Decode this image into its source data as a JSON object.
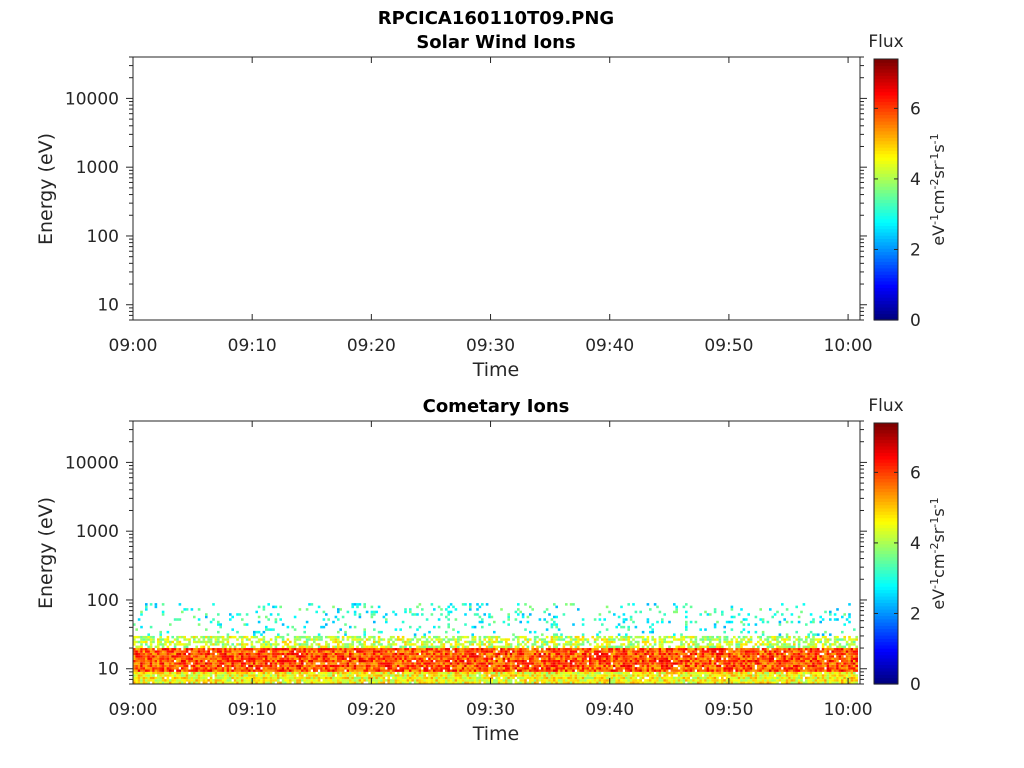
{
  "figure_title": "RPCICA160110T09.PNG",
  "chart_data": [
    {
      "type": "heatmap",
      "title": "Solar Wind Ions",
      "xlabel": "Time",
      "ylabel": "Energy (eV)",
      "x_ticks": [
        "09:00",
        "09:10",
        "09:20",
        "09:30",
        "09:40",
        "09:50",
        "10:00"
      ],
      "x_range": [
        "09:00",
        "10:01"
      ],
      "y_scale": "log",
      "y_ticks": [
        10,
        100,
        1000,
        10000
      ],
      "y_tick_labels": [
        "10",
        "100",
        "1000",
        "10000"
      ],
      "ylim": [
        6,
        40000
      ],
      "colorbar": {
        "title": "Flux",
        "label": "eV-1cm-2sr-1s-1",
        "ticks": [
          0,
          2,
          4,
          6
        ],
        "tick_labels": [
          "0",
          "2",
          "4",
          "6"
        ],
        "range": [
          0,
          7.4
        ],
        "colormap": "jet"
      },
      "data_description": "empty",
      "values": []
    },
    {
      "type": "heatmap",
      "title": "Cometary Ions",
      "xlabel": "Time",
      "ylabel": "Energy (eV)",
      "x_ticks": [
        "09:00",
        "09:10",
        "09:20",
        "09:30",
        "09:40",
        "09:50",
        "10:00"
      ],
      "x_range": [
        "09:00",
        "10:01"
      ],
      "y_scale": "log",
      "y_ticks": [
        10,
        100,
        1000,
        10000
      ],
      "y_tick_labels": [
        "10",
        "100",
        "1000",
        "10000"
      ],
      "ylim": [
        6,
        40000
      ],
      "colorbar": {
        "title": "Flux",
        "label": "eV-1cm-2sr-1s-1",
        "ticks": [
          0,
          2,
          4,
          6
        ],
        "tick_labels": [
          "0",
          "2",
          "4",
          "6"
        ],
        "range": [
          0,
          7.4
        ],
        "colormap": "jet"
      },
      "energy_bands": [
        {
          "energy_min": 6,
          "energy_max": 9,
          "typical_flux": 4.6
        },
        {
          "energy_min": 9,
          "energy_max": 20,
          "typical_flux": 5.9
        },
        {
          "energy_min": 20,
          "energy_max": 30,
          "typical_flux": 4.2
        },
        {
          "energy_min": 30,
          "energy_max": 90,
          "typical_flux": 3.0
        }
      ]
    }
  ]
}
